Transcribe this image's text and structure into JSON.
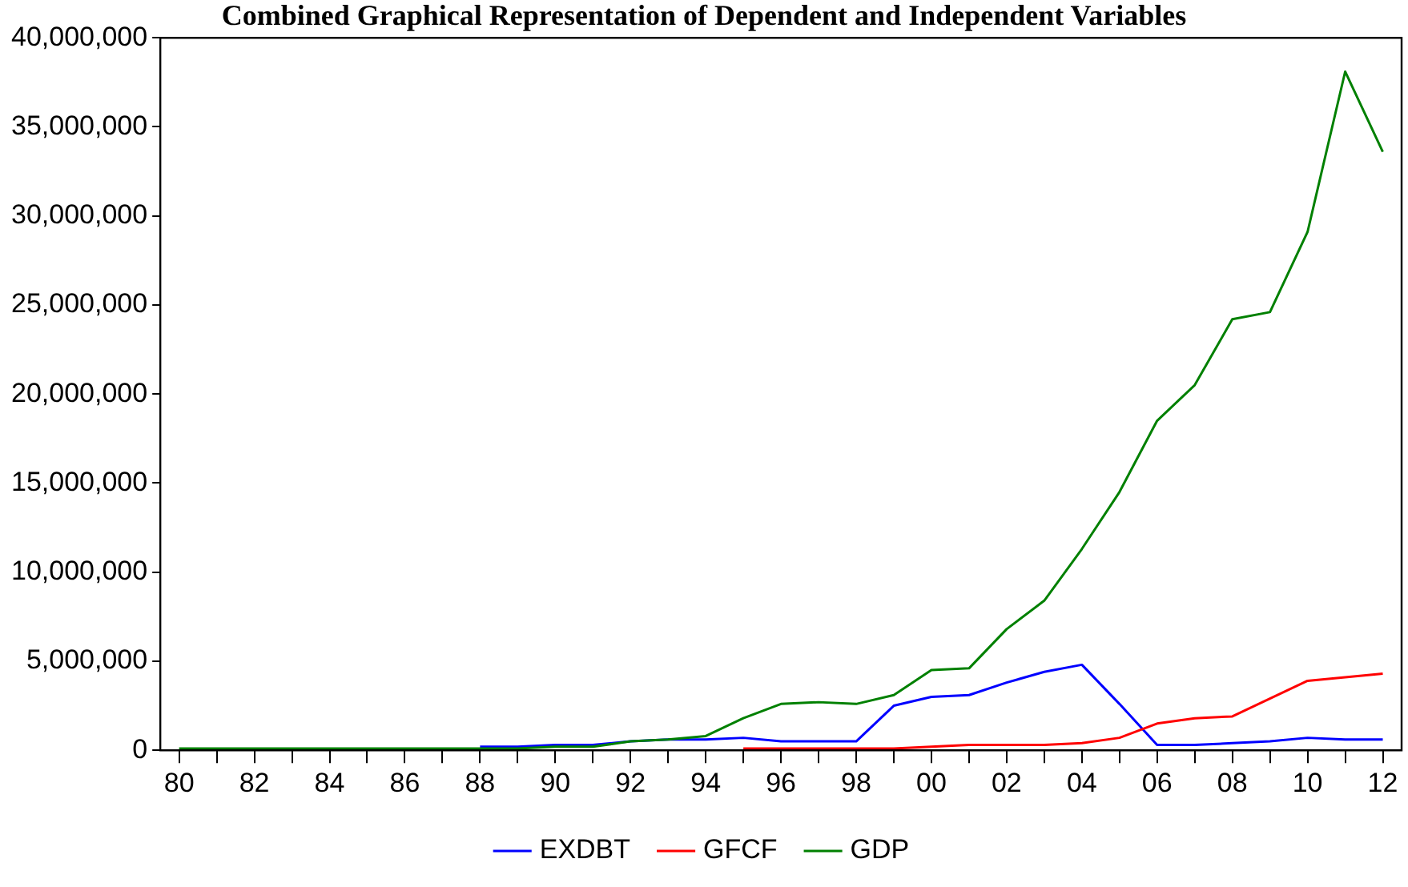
{
  "chart_data": {
    "type": "line",
    "title": "Combined Graphical Representation of Dependent and Independent Variables",
    "x": [
      1980,
      1981,
      1982,
      1983,
      1984,
      1985,
      1986,
      1987,
      1988,
      1989,
      1990,
      1991,
      1992,
      1993,
      1994,
      1995,
      1996,
      1997,
      1998,
      1999,
      2000,
      2001,
      2002,
      2003,
      2004,
      2005,
      2006,
      2007,
      2008,
      2009,
      2010,
      2011,
      2012
    ],
    "series": [
      {
        "name": "EXDBT",
        "color": "#0000ff",
        "values": [
          null,
          null,
          null,
          null,
          null,
          null,
          null,
          null,
          200000,
          200000,
          300000,
          300000,
          500000,
          600000,
          600000,
          700000,
          500000,
          500000,
          500000,
          2500000,
          3000000,
          3100000,
          3800000,
          4400000,
          4800000,
          2600000,
          300000,
          300000,
          400000,
          500000,
          700000,
          600000,
          600000
        ]
      },
      {
        "name": "GFCF",
        "color": "#ff0000",
        "values": [
          null,
          null,
          null,
          null,
          null,
          null,
          null,
          null,
          null,
          null,
          null,
          null,
          null,
          null,
          null,
          100000,
          100000,
          100000,
          100000,
          100000,
          200000,
          300000,
          300000,
          300000,
          400000,
          700000,
          1500000,
          1800000,
          1900000,
          2900000,
          3900000,
          4100000,
          4300000
        ]
      },
      {
        "name": "GDP",
        "color": "#008000",
        "values": [
          100000,
          100000,
          100000,
          100000,
          100000,
          100000,
          100000,
          100000,
          100000,
          100000,
          200000,
          200000,
          500000,
          600000,
          800000,
          1800000,
          2600000,
          2700000,
          2600000,
          3100000,
          4500000,
          4600000,
          6800000,
          8400000,
          11300000,
          14500000,
          18500000,
          20500000,
          24200000,
          24600000,
          29100000,
          38100000,
          33600000
        ]
      }
    ],
    "xlim": [
      1979.5,
      2012.5
    ],
    "xticks": [
      {
        "value": 1980,
        "label": "80"
      },
      {
        "value": 1981,
        "label": null
      },
      {
        "value": 1982,
        "label": "82"
      },
      {
        "value": 1983,
        "label": null
      },
      {
        "value": 1984,
        "label": "84"
      },
      {
        "value": 1985,
        "label": null
      },
      {
        "value": 1986,
        "label": "86"
      },
      {
        "value": 1987,
        "label": null
      },
      {
        "value": 1988,
        "label": "88"
      },
      {
        "value": 1989,
        "label": null
      },
      {
        "value": 1990,
        "label": "90"
      },
      {
        "value": 1991,
        "label": null
      },
      {
        "value": 1992,
        "label": "92"
      },
      {
        "value": 1993,
        "label": null
      },
      {
        "value": 1994,
        "label": "94"
      },
      {
        "value": 1995,
        "label": null
      },
      {
        "value": 1996,
        "label": "96"
      },
      {
        "value": 1997,
        "label": null
      },
      {
        "value": 1998,
        "label": "98"
      },
      {
        "value": 1999,
        "label": null
      },
      {
        "value": 2000,
        "label": "00"
      },
      {
        "value": 2001,
        "label": null
      },
      {
        "value": 2002,
        "label": "02"
      },
      {
        "value": 2003,
        "label": null
      },
      {
        "value": 2004,
        "label": "04"
      },
      {
        "value": 2005,
        "label": null
      },
      {
        "value": 2006,
        "label": "06"
      },
      {
        "value": 2007,
        "label": null
      },
      {
        "value": 2008,
        "label": "08"
      },
      {
        "value": 2009,
        "label": null
      },
      {
        "value": 2010,
        "label": "10"
      },
      {
        "value": 2011,
        "label": null
      },
      {
        "value": 2012,
        "label": "12"
      }
    ],
    "ylim": [
      0,
      40000000
    ],
    "yticks": [
      {
        "value": 0,
        "label": "0"
      },
      {
        "value": 5000000,
        "label": "5,000,000"
      },
      {
        "value": 10000000,
        "label": "10,000,000"
      },
      {
        "value": 15000000,
        "label": "15,000,000"
      },
      {
        "value": 20000000,
        "label": "20,000,000"
      },
      {
        "value": 25000000,
        "label": "25,000,000"
      },
      {
        "value": 30000000,
        "label": "30,000,000"
      },
      {
        "value": 35000000,
        "label": "35,000,000"
      },
      {
        "value": 40000000,
        "label": "40,000,000"
      }
    ],
    "grid": false,
    "legend": "bottom",
    "marker": "none",
    "line_style": "solid"
  }
}
